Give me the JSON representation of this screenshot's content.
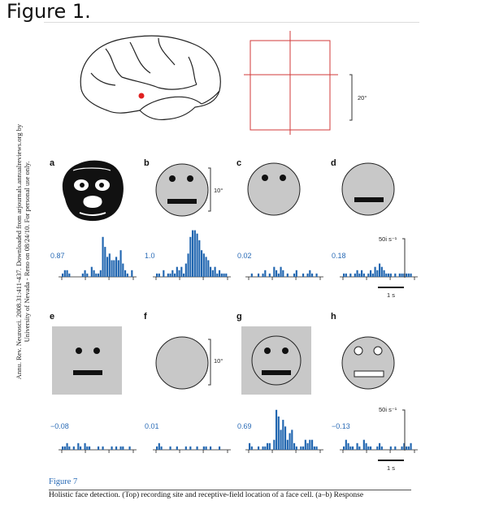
{
  "heading": "Figure 1.",
  "side_note": "Annu. Rev. Neurosci. 2008.31:411-437. Downloaded from arjournals.annualreviews.org by University of Nevada - Reno on 08/24/10. For personal use only.",
  "top": {
    "rf_scale": "20°"
  },
  "panels": [
    {
      "letter": "a",
      "rate": "0.87",
      "hist": [
        1,
        2,
        2,
        1,
        0,
        0,
        0,
        0,
        0,
        1,
        2,
        1,
        0,
        3,
        2,
        1,
        1,
        2,
        12,
        9,
        6,
        7,
        5,
        5,
        6,
        5,
        8,
        4,
        2,
        1,
        0,
        2
      ]
    },
    {
      "letter": "b",
      "rate": "1.0",
      "hist": [
        1,
        1,
        0,
        2,
        0,
        1,
        1,
        2,
        1,
        3,
        2,
        3,
        1,
        4,
        7,
        12,
        14,
        14,
        13,
        11,
        8,
        7,
        6,
        5,
        3,
        2,
        3,
        1,
        2,
        1,
        1,
        1
      ]
    },
    {
      "letter": "c",
      "rate": "0.02",
      "hist": [
        0,
        1,
        0,
        0,
        1,
        0,
        1,
        2,
        0,
        1,
        0,
        3,
        2,
        1,
        3,
        2,
        0,
        1,
        0,
        0,
        1,
        2,
        0,
        0,
        1,
        0,
        1,
        2,
        1,
        0,
        1,
        0
      ]
    },
    {
      "letter": "d",
      "rate": "0.18",
      "hist": [
        1,
        1,
        0,
        1,
        0,
        1,
        2,
        1,
        2,
        1,
        0,
        1,
        2,
        1,
        3,
        2,
        4,
        3,
        2,
        1,
        1,
        1,
        0,
        1,
        0,
        1,
        1,
        1,
        1,
        1,
        1,
        0
      ]
    },
    {
      "letter": "e",
      "rate": "−0.08",
      "hist": [
        1,
        1,
        2,
        1,
        0,
        1,
        0,
        2,
        1,
        0,
        2,
        1,
        1,
        0,
        0,
        0,
        1,
        0,
        1,
        0,
        0,
        0,
        1,
        0,
        1,
        0,
        1,
        1,
        0,
        0,
        1,
        0
      ]
    },
    {
      "letter": "f",
      "rate": "0.01",
      "hist": [
        1,
        2,
        1,
        0,
        0,
        0,
        1,
        0,
        0,
        1,
        0,
        0,
        0,
        1,
        0,
        1,
        0,
        0,
        1,
        0,
        0,
        1,
        1,
        0,
        1,
        0,
        0,
        0,
        1,
        0,
        0,
        0
      ]
    },
    {
      "letter": "g",
      "rate": "0.69",
      "hist": [
        2,
        1,
        0,
        0,
        1,
        0,
        1,
        1,
        2,
        2,
        0,
        3,
        12,
        10,
        6,
        9,
        7,
        3,
        5,
        6,
        2,
        1,
        0,
        1,
        1,
        3,
        2,
        3,
        3,
        1,
        1,
        0
      ]
    },
    {
      "letter": "h",
      "rate": "−0.13",
      "hist": [
        1,
        3,
        2,
        1,
        1,
        0,
        2,
        1,
        0,
        3,
        2,
        1,
        1,
        0,
        0,
        1,
        2,
        1,
        0,
        0,
        0,
        1,
        0,
        1,
        0,
        0,
        1,
        2,
        1,
        1,
        2,
        0
      ]
    }
  ],
  "stim_scale": [
    "10°",
    "10°"
  ],
  "rate_scale": [
    "50i s⁻¹",
    "50i s⁻¹"
  ],
  "time_scale": [
    "1 s",
    "1 s"
  ],
  "caption": {
    "label": "Figure 7",
    "text": "Holistic face detection. (Top) recording site and receptive-field location of a face cell. (a–b) Response"
  },
  "colors": {
    "hist": "#2166b0",
    "rf_grid": "#d23a3a",
    "site": "#e02020",
    "stim_fill": "#c8c8c8"
  }
}
